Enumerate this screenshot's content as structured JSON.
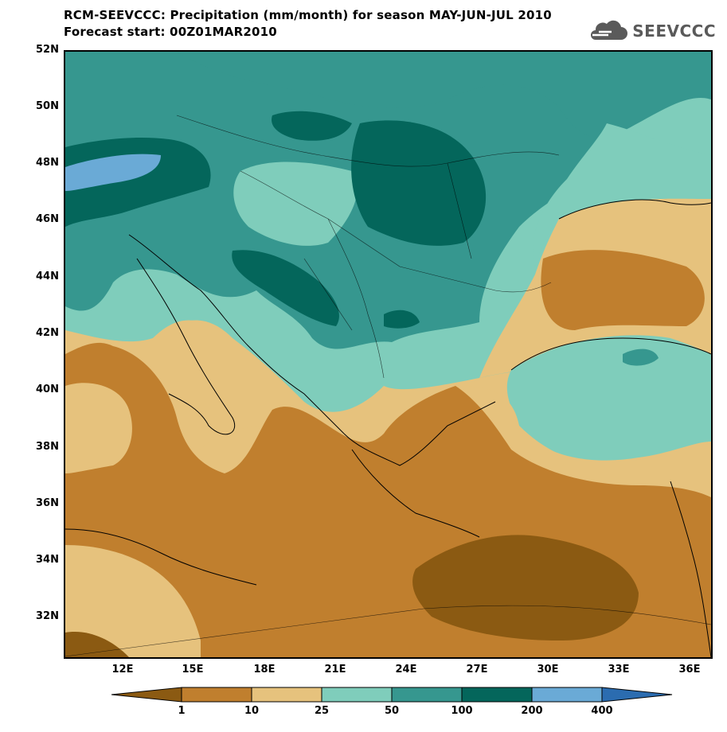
{
  "header": {
    "title": "RCM-SEEVCCC: Precipitation (mm/month) for season MAY-JUN-JUL 2010",
    "subtitle": "Forecast start: 00Z01MAR2010"
  },
  "logo": {
    "text": "SEEVCCC",
    "icon": "cloud-logo-icon"
  },
  "axes": {
    "lat_labels": [
      "52N",
      "50N",
      "48N",
      "46N",
      "44N",
      "42N",
      "40N",
      "38N",
      "36N",
      "34N",
      "32N"
    ],
    "lon_labels": [
      "12E",
      "15E",
      "18E",
      "21E",
      "24E",
      "27E",
      "30E",
      "33E",
      "36E"
    ]
  },
  "legend": {
    "thresholds": [
      "1",
      "10",
      "25",
      "50",
      "100",
      "200",
      "400"
    ],
    "colors": [
      "#8b5a12",
      "#c07f2e",
      "#e6c27d",
      "#7fcdbb",
      "#36978f",
      "#04665b",
      "#6aaad6",
      "#2b6cb0"
    ]
  }
}
